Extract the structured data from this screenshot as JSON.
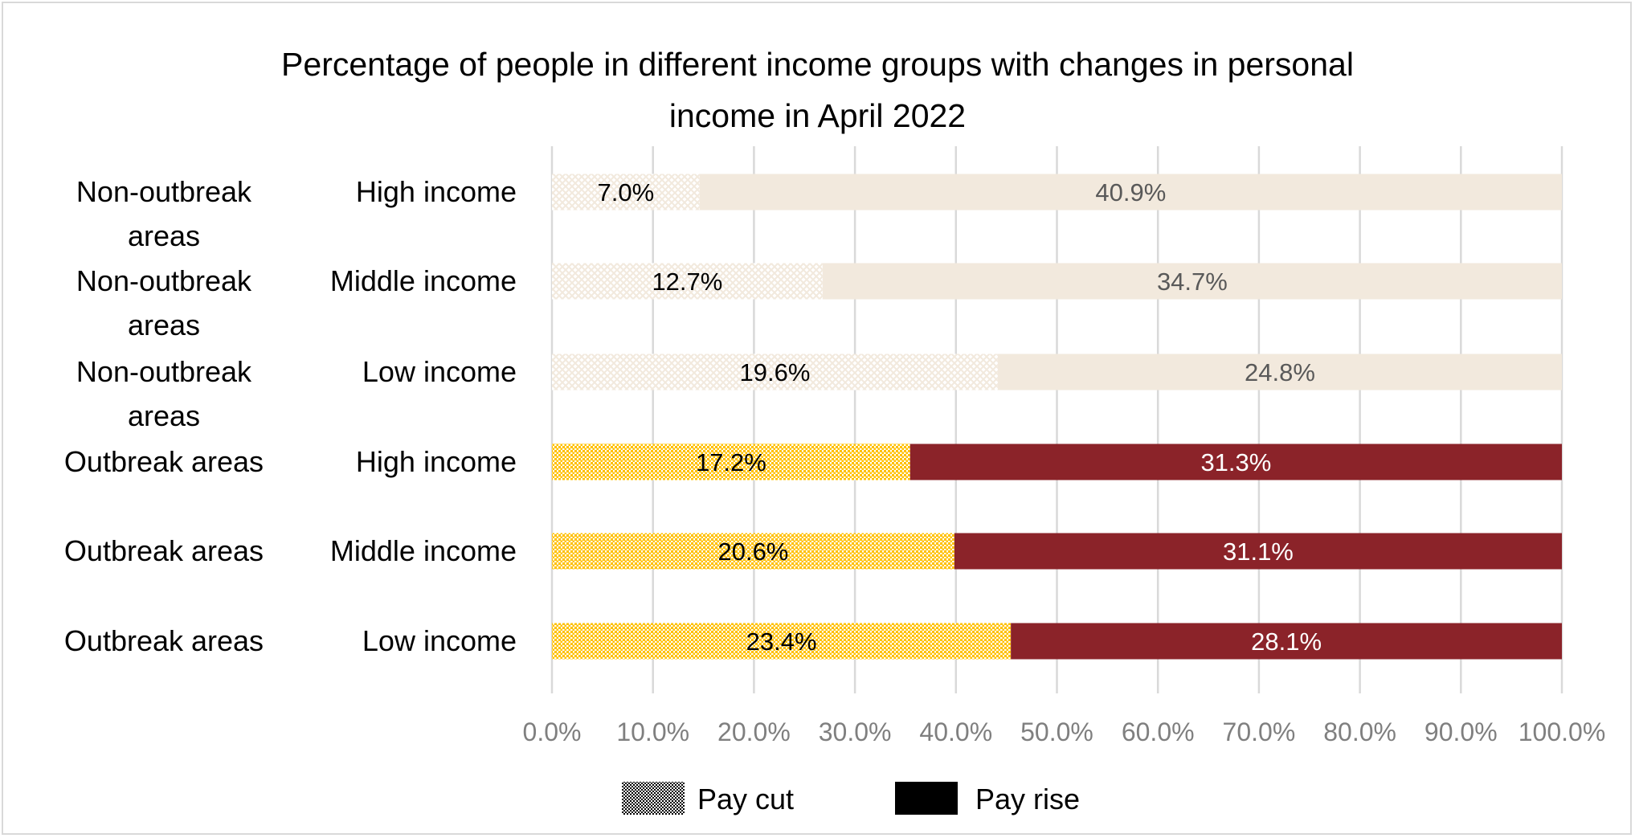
{
  "chart_data": {
    "type": "bar",
    "orientation": "horizontal",
    "stacking": "percent",
    "title": "Percentage of people in different income groups with changes in personal income in April 2022",
    "title_lines": [
      "Percentage of people in different income groups with changes in personal",
      "income in April 2022"
    ],
    "categories": [
      {
        "area": "Non-outbreak areas",
        "area_lines": [
          "Non-outbreak",
          "areas"
        ],
        "group": "High income"
      },
      {
        "area": "Non-outbreak areas",
        "area_lines": [
          "Non-outbreak",
          "areas"
        ],
        "group": "Middle income"
      },
      {
        "area": "Non-outbreak areas",
        "area_lines": [
          "Non-outbreak",
          "areas"
        ],
        "group": "Low income"
      },
      {
        "area": "Outbreak areas",
        "area_lines": [
          "Outbreak areas"
        ],
        "group": "High income"
      },
      {
        "area": "Outbreak areas",
        "area_lines": [
          "Outbreak areas"
        ],
        "group": "Middle income"
      },
      {
        "area": "Outbreak areas",
        "area_lines": [
          "Outbreak areas"
        ],
        "group": "Low income"
      }
    ],
    "series": [
      {
        "name": "Pay cut",
        "values": [
          7.0,
          12.7,
          19.6,
          17.2,
          20.6,
          23.4
        ],
        "labels": [
          "7.0%",
          "12.7%",
          "19.6%",
          "17.2%",
          "20.6%",
          "23.4%"
        ]
      },
      {
        "name": "Pay rise",
        "values": [
          40.9,
          34.7,
          24.8,
          31.3,
          31.1,
          28.1
        ],
        "labels": [
          "40.9%",
          "34.7%",
          "24.8%",
          "31.3%",
          "31.1%",
          "28.1%"
        ]
      }
    ],
    "xlim": [
      0,
      100
    ],
    "x_ticks": [
      "0.0%",
      "10.0%",
      "20.0%",
      "30.0%",
      "40.0%",
      "50.0%",
      "60.0%",
      "70.0%",
      "80.0%",
      "90.0%",
      "100.0%"
    ],
    "grid": true,
    "legend": "bottom",
    "colors": {
      "non_outbreak_pay_cut": "#f2e9dd",
      "non_outbreak_pay_rise": "#f2e9dd",
      "outbreak_pay_cut": "#ffc000",
      "outbreak_pay_rise": "#8b2329",
      "gridline": "#d9d9d9"
    }
  }
}
